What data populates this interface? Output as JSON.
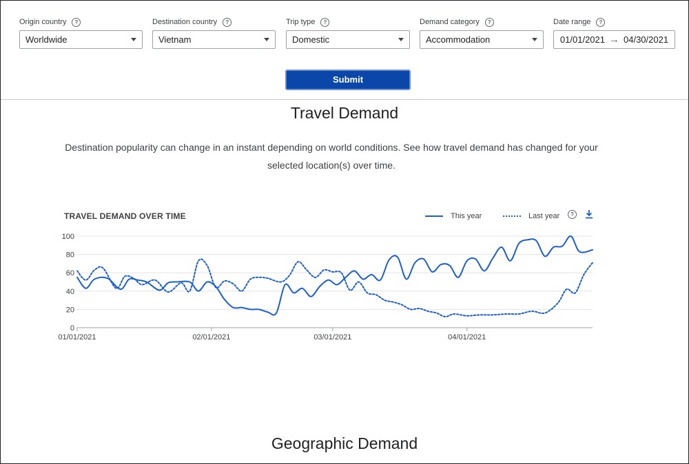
{
  "filters": {
    "origin": {
      "label": "Origin country",
      "value": "Worldwide"
    },
    "destination": {
      "label": "Destination country",
      "value": "Vietnam"
    },
    "trip_type": {
      "label": "Trip type",
      "value": "Domestic"
    },
    "demand_category": {
      "label": "Demand category",
      "value": "Accommodation"
    },
    "date_range": {
      "label": "Date range",
      "start": "01/01/2021",
      "end": "04/30/2021"
    },
    "help_glyph": "?"
  },
  "submit_label": "Submit",
  "section_title": "Travel Demand",
  "description": "Destination popularity can change in an instant depending on world conditions. See how travel demand has changed for your selected location(s) over time.",
  "next_section_title": "Geographic Demand",
  "icons": {
    "help": "help-circle-icon",
    "download": "download-icon",
    "dropdown": "dropdown-caret-icon",
    "arrow": "arrow-right-icon"
  },
  "colors": {
    "series": "#1a5fcc",
    "submit": "#0b47a8"
  },
  "chart_data": {
    "type": "line",
    "title": "TRAVEL DEMAND OVER TIME",
    "x_labels": [
      "01/01/2021",
      "02/01/2021",
      "03/01/2021",
      "04/01/2021"
    ],
    "y_ticks": [
      0,
      20,
      40,
      60,
      80,
      100
    ],
    "ylim": [
      0,
      100
    ],
    "xlim": [
      "01/01/2021",
      "04/30/2021"
    ],
    "grid": true,
    "legend_position": "top-right",
    "series": [
      {
        "name": "This year",
        "style": "solid",
        "x": [
          "01/01/2021",
          "01/03/2021",
          "01/05/2021",
          "01/08/2021",
          "01/11/2021",
          "01/13/2021",
          "01/15/2021",
          "01/17/2021",
          "01/20/2021",
          "01/22/2021",
          "01/24/2021",
          "01/27/2021",
          "01/29/2021",
          "01/31/2021",
          "02/02/2021",
          "02/04/2021",
          "02/06/2021",
          "02/08/2021",
          "02/10/2021",
          "02/12/2021",
          "02/14/2021",
          "02/16/2021",
          "02/18/2021",
          "02/20/2021",
          "02/22/2021",
          "02/24/2021",
          "02/26/2021",
          "02/28/2021",
          "03/02/2021",
          "03/04/2021",
          "03/06/2021",
          "03/08/2021",
          "03/10/2021",
          "03/12/2021",
          "03/14/2021",
          "03/16/2021",
          "03/18/2021",
          "03/20/2021",
          "03/22/2021",
          "03/24/2021",
          "03/26/2021",
          "03/28/2021",
          "03/30/2021",
          "04/01/2021",
          "04/03/2021",
          "04/05/2021",
          "04/07/2021",
          "04/09/2021",
          "04/11/2021",
          "04/13/2021",
          "04/15/2021",
          "04/17/2021",
          "04/19/2021",
          "04/21/2021",
          "04/23/2021",
          "04/25/2021",
          "04/27/2021",
          "04/30/2021"
        ],
        "y": [
          55,
          43,
          53,
          54,
          42,
          53,
          52,
          50,
          41,
          49,
          50,
          50,
          40,
          50,
          45,
          31,
          22,
          22,
          20,
          20,
          17,
          16,
          47,
          38,
          43,
          34,
          45,
          52,
          47,
          55,
          62,
          53,
          58,
          52,
          74,
          77,
          53,
          71,
          75,
          61,
          69,
          68,
          55,
          73,
          75,
          62,
          76,
          88,
          73,
          92,
          96,
          95,
          78,
          88,
          89,
          100,
          83,
          85
        ]
      },
      {
        "name": "Last year",
        "style": "dotted",
        "x": [
          "01/01/2021",
          "01/03/2021",
          "01/05/2021",
          "01/07/2021",
          "01/10/2021",
          "01/12/2021",
          "01/14/2021",
          "01/16/2021",
          "01/19/2021",
          "01/22/2021",
          "01/25/2021",
          "01/27/2021",
          "01/29/2021",
          "01/31/2021",
          "02/02/2021",
          "02/04/2021",
          "02/06/2021",
          "02/08/2021",
          "02/10/2021",
          "02/12/2021",
          "02/14/2021",
          "02/17/2021",
          "02/19/2021",
          "02/21/2021",
          "02/23/2021",
          "02/25/2021",
          "02/27/2021",
          "03/01/2021",
          "03/03/2021",
          "03/05/2021",
          "03/07/2021",
          "03/09/2021",
          "03/11/2021",
          "03/13/2021",
          "03/15/2021",
          "03/17/2021",
          "03/19/2021",
          "03/21/2021",
          "03/23/2021",
          "03/25/2021",
          "03/27/2021",
          "03/29/2021",
          "04/01/2021",
          "04/04/2021",
          "04/07/2021",
          "04/10/2021",
          "04/13/2021",
          "04/16/2021",
          "04/19/2021",
          "04/22/2021",
          "04/24/2021",
          "04/26/2021",
          "04/28/2021",
          "04/30/2021"
        ],
        "y": [
          62,
          52,
          63,
          65,
          43,
          56,
          54,
          47,
          52,
          39,
          49,
          40,
          73,
          68,
          44,
          51,
          48,
          40,
          53,
          55,
          54,
          50,
          57,
          72,
          63,
          55,
          63,
          61,
          60,
          41,
          50,
          38,
          36,
          30,
          28,
          25,
          20,
          21,
          18,
          16,
          12,
          15,
          13,
          14,
          14,
          15,
          15,
          18,
          16,
          27,
          42,
          38,
          58,
          71
        ]
      }
    ]
  }
}
